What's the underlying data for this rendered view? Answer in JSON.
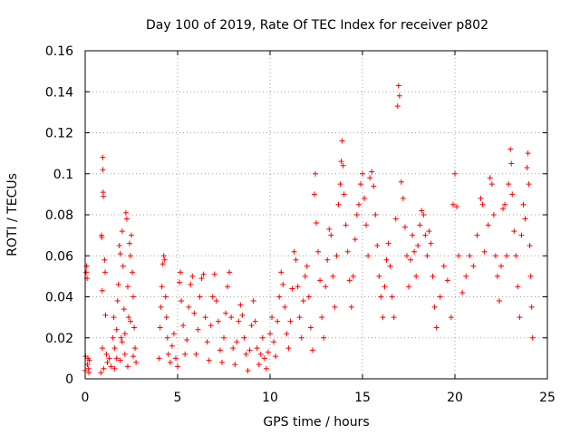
{
  "chart_data": {
    "type": "scatter",
    "title": "Day 100 of 2019, Rate Of TEC Index for receiver p802",
    "xlabel": "GPS time / hours",
    "ylabel": "ROTI / TECUs",
    "xlim": [
      0,
      25
    ],
    "ylim": [
      0,
      0.16
    ],
    "x_ticks": [
      0,
      5,
      10,
      15,
      20,
      25
    ],
    "x_tick_labels": [
      "0",
      "5",
      "10",
      "15",
      "20",
      "25"
    ],
    "y_ticks": [
      0,
      0.02,
      0.04,
      0.06,
      0.08,
      0.1,
      0.12,
      0.14,
      0.16
    ],
    "y_tick_labels": [
      "0",
      "0.02",
      "0.04",
      "0.06",
      "0.08",
      "0.1",
      "0.12",
      "0.14",
      "0.16"
    ],
    "grid": true,
    "legend": "none",
    "marker": "plus",
    "color": "#ff0000",
    "series": [
      {
        "points": [
          [
            0.0,
            0.004
          ],
          [
            0.02,
            0.011
          ],
          [
            0.05,
            0.052
          ],
          [
            0.08,
            0.055
          ],
          [
            0.1,
            0.049
          ],
          [
            0.12,
            0.007
          ],
          [
            0.15,
            0.01
          ],
          [
            0.18,
            0.005
          ],
          [
            0.2,
            0.003
          ],
          [
            0.22,
            0.009
          ],
          [
            0.85,
            0.003
          ],
          [
            0.88,
            0.07
          ],
          [
            0.9,
            0.069
          ],
          [
            0.92,
            0.043
          ],
          [
            0.93,
            0.015
          ],
          [
            0.95,
            0.108
          ],
          [
            0.96,
            0.102
          ],
          [
            0.97,
            0.091
          ],
          [
            0.98,
            0.089
          ],
          [
            1.0,
            0.005
          ],
          [
            1.05,
            0.058
          ],
          [
            1.08,
            0.052
          ],
          [
            1.1,
            0.031
          ],
          [
            1.15,
            0.012
          ],
          [
            1.2,
            0.008
          ],
          [
            1.3,
            0.01
          ],
          [
            1.4,
            0.006
          ],
          [
            1.5,
            0.02
          ],
          [
            1.55,
            0.03
          ],
          [
            1.6,
            0.015
          ],
          [
            1.7,
            0.024
          ],
          [
            1.75,
            0.038
          ],
          [
            1.8,
            0.046
          ],
          [
            1.85,
            0.065
          ],
          [
            1.9,
            0.061
          ],
          [
            1.95,
            0.02
          ],
          [
            2.0,
            0.072
          ],
          [
            2.05,
            0.055
          ],
          [
            2.1,
            0.034
          ],
          [
            2.15,
            0.012
          ],
          [
            2.2,
            0.081
          ],
          [
            2.25,
            0.078
          ],
          [
            2.3,
            0.045
          ],
          [
            2.35,
            0.03
          ],
          [
            2.4,
            0.066
          ],
          [
            2.45,
            0.06
          ],
          [
            2.5,
            0.07
          ],
          [
            2.55,
            0.052
          ],
          [
            2.6,
            0.04
          ],
          [
            2.65,
            0.025
          ],
          [
            2.7,
            0.015
          ],
          [
            2.75,
            0.008
          ],
          [
            1.6,
            0.005
          ],
          [
            1.9,
            0.009
          ],
          [
            2.3,
            0.006
          ],
          [
            2.6,
            0.011
          ],
          [
            2.0,
            0.018
          ],
          [
            1.7,
            0.01
          ],
          [
            2.45,
            0.028
          ],
          [
            2.15,
            0.022
          ],
          [
            4.0,
            0.01
          ],
          [
            4.05,
            0.025
          ],
          [
            4.1,
            0.035
          ],
          [
            4.15,
            0.045
          ],
          [
            4.2,
            0.056
          ],
          [
            4.25,
            0.06
          ],
          [
            4.3,
            0.058
          ],
          [
            4.35,
            0.04
          ],
          [
            4.4,
            0.03
          ],
          [
            4.45,
            0.02
          ],
          [
            4.5,
            0.012
          ],
          [
            4.6,
            0.008
          ],
          [
            4.7,
            0.016
          ],
          [
            4.8,
            0.022
          ],
          [
            4.9,
            0.01
          ],
          [
            5.0,
            0.006
          ],
          [
            5.1,
            0.047
          ],
          [
            5.15,
            0.052
          ],
          [
            5.2,
            0.038
          ],
          [
            5.3,
            0.026
          ],
          [
            5.4,
            0.012
          ],
          [
            5.5,
            0.019
          ],
          [
            5.6,
            0.035
          ],
          [
            5.7,
            0.046
          ],
          [
            5.8,
            0.05
          ],
          [
            5.9,
            0.032
          ],
          [
            6.0,
            0.012
          ],
          [
            6.1,
            0.024
          ],
          [
            6.2,
            0.04
          ],
          [
            6.3,
            0.049
          ],
          [
            6.4,
            0.051
          ],
          [
            6.5,
            0.03
          ],
          [
            6.6,
            0.018
          ],
          [
            6.7,
            0.009
          ],
          [
            6.8,
            0.026
          ],
          [
            6.9,
            0.04
          ],
          [
            7.0,
            0.051
          ],
          [
            7.1,
            0.038
          ],
          [
            7.2,
            0.028
          ],
          [
            7.3,
            0.014
          ],
          [
            7.4,
            0.008
          ],
          [
            7.5,
            0.02
          ],
          [
            7.6,
            0.032
          ],
          [
            7.7,
            0.045
          ],
          [
            7.8,
            0.052
          ],
          [
            7.9,
            0.03
          ],
          [
            8.0,
            0.015
          ],
          [
            8.1,
            0.007
          ],
          [
            8.2,
            0.018
          ],
          [
            8.3,
            0.028
          ],
          [
            8.4,
            0.036
          ],
          [
            8.5,
            0.031
          ],
          [
            8.6,
            0.02
          ],
          [
            8.7,
            0.012
          ],
          [
            8.8,
            0.004
          ],
          [
            8.9,
            0.014
          ],
          [
            9.0,
            0.026
          ],
          [
            9.1,
            0.038
          ],
          [
            9.2,
            0.028
          ],
          [
            9.3,
            0.015
          ],
          [
            9.4,
            0.007
          ],
          [
            9.5,
            0.012
          ],
          [
            9.6,
            0.02
          ],
          [
            9.7,
            0.01
          ],
          [
            9.8,
            0.005
          ],
          [
            9.9,
            0.013
          ],
          [
            10.0,
            0.022
          ],
          [
            10.1,
            0.03
          ],
          [
            10.2,
            0.018
          ],
          [
            10.3,
            0.011
          ],
          [
            10.4,
            0.028
          ],
          [
            10.5,
            0.04
          ],
          [
            10.6,
            0.052
          ],
          [
            10.7,
            0.046
          ],
          [
            10.8,
            0.035
          ],
          [
            10.9,
            0.022
          ],
          [
            11.0,
            0.015
          ],
          [
            11.1,
            0.028
          ],
          [
            11.2,
            0.044
          ],
          [
            11.3,
            0.062
          ],
          [
            11.4,
            0.058
          ],
          [
            11.5,
            0.045
          ],
          [
            11.6,
            0.03
          ],
          [
            11.7,
            0.02
          ],
          [
            11.8,
            0.038
          ],
          [
            11.9,
            0.05
          ],
          [
            12.0,
            0.055
          ],
          [
            12.1,
            0.04
          ],
          [
            12.2,
            0.025
          ],
          [
            12.3,
            0.014
          ],
          [
            12.4,
            0.09
          ],
          [
            12.45,
            0.1
          ],
          [
            12.5,
            0.076
          ],
          [
            12.6,
            0.062
          ],
          [
            12.7,
            0.048
          ],
          [
            12.8,
            0.03
          ],
          [
            12.9,
            0.02
          ],
          [
            13.0,
            0.045
          ],
          [
            13.1,
            0.058
          ],
          [
            13.2,
            0.073
          ],
          [
            13.3,
            0.07
          ],
          [
            13.4,
            0.05
          ],
          [
            13.5,
            0.035
          ],
          [
            13.6,
            0.06
          ],
          [
            13.7,
            0.085
          ],
          [
            13.8,
            0.095
          ],
          [
            13.85,
            0.106
          ],
          [
            13.9,
            0.116
          ],
          [
            13.95,
            0.104
          ],
          [
            14.0,
            0.09
          ],
          [
            14.1,
            0.075
          ],
          [
            14.2,
            0.062
          ],
          [
            14.3,
            0.048
          ],
          [
            14.4,
            0.035
          ],
          [
            14.5,
            0.05
          ],
          [
            14.6,
            0.068
          ],
          [
            14.7,
            0.08
          ],
          [
            14.8,
            0.085
          ],
          [
            14.9,
            0.095
          ],
          [
            15.0,
            0.1
          ],
          [
            15.1,
            0.088
          ],
          [
            15.2,
            0.075
          ],
          [
            15.3,
            0.06
          ],
          [
            15.4,
            0.098
          ],
          [
            15.5,
            0.101
          ],
          [
            15.6,
            0.094
          ],
          [
            15.7,
            0.08
          ],
          [
            15.8,
            0.065
          ],
          [
            15.9,
            0.05
          ],
          [
            16.0,
            0.04
          ],
          [
            16.1,
            0.03
          ],
          [
            16.2,
            0.045
          ],
          [
            16.3,
            0.058
          ],
          [
            16.4,
            0.066
          ],
          [
            16.5,
            0.055
          ],
          [
            16.6,
            0.04
          ],
          [
            16.7,
            0.03
          ],
          [
            16.8,
            0.078
          ],
          [
            16.9,
            0.133
          ],
          [
            16.95,
            0.143
          ],
          [
            17.0,
            0.138
          ],
          [
            17.1,
            0.096
          ],
          [
            17.2,
            0.088
          ],
          [
            17.3,
            0.074
          ],
          [
            17.4,
            0.06
          ],
          [
            17.5,
            0.045
          ],
          [
            17.6,
            0.058
          ],
          [
            17.7,
            0.07
          ],
          [
            17.8,
            0.062
          ],
          [
            17.9,
            0.05
          ],
          [
            18.0,
            0.065
          ],
          [
            18.1,
            0.075
          ],
          [
            18.2,
            0.082
          ],
          [
            18.3,
            0.08
          ],
          [
            18.4,
            0.07
          ],
          [
            18.5,
            0.06
          ],
          [
            18.6,
            0.072
          ],
          [
            18.7,
            0.066
          ],
          [
            18.8,
            0.05
          ],
          [
            18.9,
            0.035
          ],
          [
            19.0,
            0.025
          ],
          [
            19.2,
            0.04
          ],
          [
            19.4,
            0.055
          ],
          [
            19.6,
            0.048
          ],
          [
            19.8,
            0.03
          ],
          [
            19.9,
            0.085
          ],
          [
            20.0,
            0.1
          ],
          [
            20.1,
            0.084
          ],
          [
            20.2,
            0.06
          ],
          [
            20.4,
            0.042
          ],
          [
            20.6,
            0.05
          ],
          [
            20.8,
            0.06
          ],
          [
            21.0,
            0.055
          ],
          [
            21.2,
            0.07
          ],
          [
            21.4,
            0.088
          ],
          [
            21.5,
            0.085
          ],
          [
            21.6,
            0.062
          ],
          [
            21.8,
            0.075
          ],
          [
            21.9,
            0.098
          ],
          [
            22.0,
            0.095
          ],
          [
            22.1,
            0.08
          ],
          [
            22.2,
            0.06
          ],
          [
            22.3,
            0.05
          ],
          [
            22.4,
            0.038
          ],
          [
            22.5,
            0.055
          ],
          [
            22.6,
            0.083
          ],
          [
            22.7,
            0.085
          ],
          [
            22.8,
            0.06
          ],
          [
            22.9,
            0.095
          ],
          [
            23.0,
            0.112
          ],
          [
            23.05,
            0.105
          ],
          [
            23.1,
            0.09
          ],
          [
            23.2,
            0.072
          ],
          [
            23.3,
            0.06
          ],
          [
            23.4,
            0.045
          ],
          [
            23.5,
            0.03
          ],
          [
            23.6,
            0.07
          ],
          [
            23.7,
            0.085
          ],
          [
            23.8,
            0.078
          ],
          [
            23.9,
            0.103
          ],
          [
            23.95,
            0.11
          ],
          [
            24.0,
            0.095
          ],
          [
            24.05,
            0.065
          ],
          [
            24.1,
            0.05
          ],
          [
            24.15,
            0.035
          ],
          [
            24.2,
            0.02
          ]
        ]
      }
    ]
  }
}
